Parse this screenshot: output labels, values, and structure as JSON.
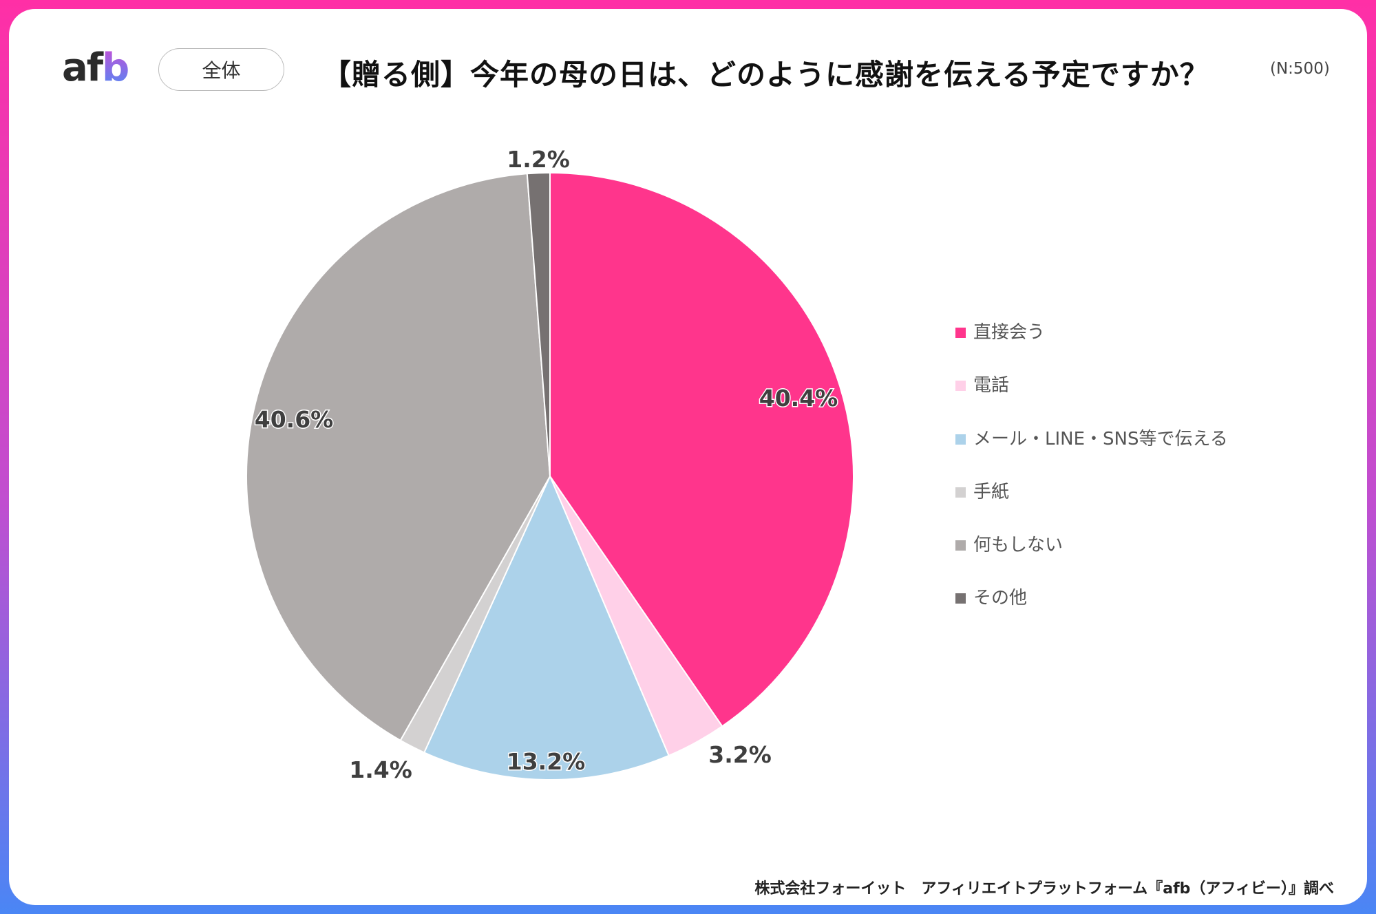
{
  "header": {
    "logo_text": "afb",
    "segment_label": "全体",
    "title": "【贈る側】今年の母の日は、どのように感謝を伝える予定ですか？",
    "sample_size": "(N:500)"
  },
  "chart_data": {
    "type": "pie",
    "title": "【贈る側】今年の母の日は、どのように感謝を伝える予定ですか？",
    "start_angle": "top",
    "direction": "clockwise",
    "legend_position": "right",
    "categories": [
      "直接会う",
      "電話",
      "メール・LINE・SNS等で伝える",
      "手紙",
      "何もしない",
      "その他"
    ],
    "values": [
      40.4,
      3.2,
      13.2,
      1.4,
      40.6,
      1.2
    ],
    "labels": [
      "40.4%",
      "3.2%",
      "13.2%",
      "1.4%",
      "40.6%",
      "1.2%"
    ],
    "colors": [
      "#FF358C",
      "#FFD0E8",
      "#ACD2EA",
      "#D3D1D1",
      "#AFABAA",
      "#767171"
    ]
  },
  "footer": {
    "source": "株式会社フォーイット　アフィリエイトプラットフォーム『afb（アフィビー）』調べ"
  }
}
